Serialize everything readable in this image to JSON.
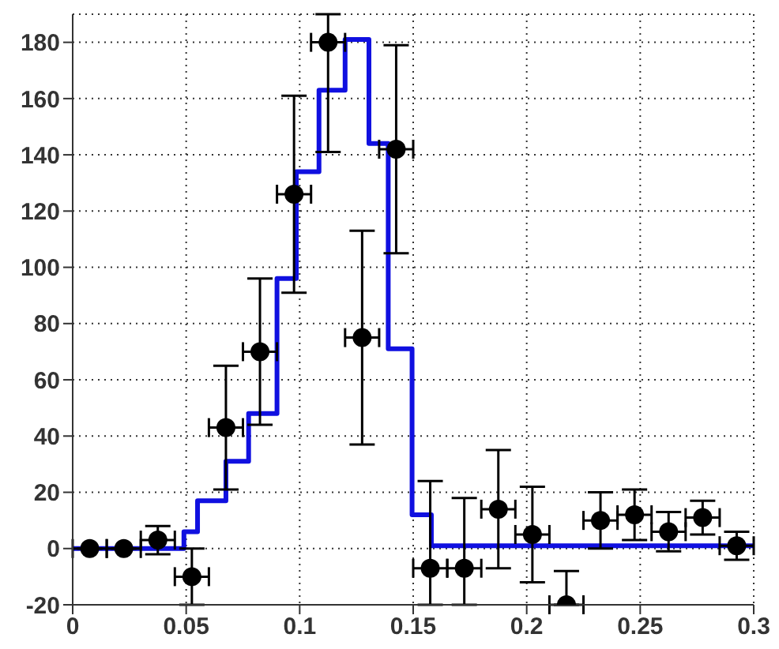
{
  "chart_data": {
    "type": "scatter",
    "xlim": [
      0,
      0.3
    ],
    "xticks": [
      0,
      0.05,
      0.1,
      0.15,
      0.2,
      0.25,
      0.3
    ],
    "ylim": [
      -20,
      190
    ],
    "yticks": [
      -20,
      0,
      20,
      40,
      60,
      80,
      100,
      120,
      140,
      160,
      180
    ],
    "grid": true,
    "series": [
      {
        "type": "step",
        "color": "#1010e0",
        "marker": "none",
        "x": [
          0,
          0.049,
          0.055,
          0.0675,
          0.0775,
          0.09,
          0.0985,
          0.1085,
          0.12,
          0.1305,
          0.139,
          0.1495,
          0.158,
          0.3
        ],
        "values": [
          0,
          6,
          17,
          31,
          48,
          96,
          134,
          163,
          181,
          144,
          71,
          12,
          1,
          1
        ]
      },
      {
        "color": "#000000",
        "marker": "circle",
        "x": [
          0.0075,
          0.0225,
          0.0375,
          0.0525,
          0.0675,
          0.0825,
          0.0975,
          0.1125,
          0.1275,
          0.1425,
          0.1575,
          0.1725,
          0.1875,
          0.2025,
          0.2175,
          0.2325,
          0.2475,
          0.2625,
          0.2775,
          0.2925
        ],
        "values": [
          0,
          0,
          3,
          -10,
          43,
          70,
          126,
          180,
          75,
          142,
          -7,
          -7,
          14,
          5,
          -20,
          10,
          12,
          6,
          11,
          1
        ],
        "errors": [
          null,
          null,
          5,
          10,
          22,
          26,
          35,
          [
            141,
            190
          ],
          38,
          37,
          [
            -20,
            24
          ],
          [
            -20,
            18
          ],
          21,
          17,
          [
            -20,
            -8
          ],
          10,
          9,
          7,
          6,
          5
        ],
        "xerrors": [
          0.0075,
          0.0075,
          0.0075,
          0.0075,
          0.0075,
          0.0075,
          0.0075,
          0.0075,
          0.0075,
          0.0075,
          0.0075,
          0.0075,
          0.0075,
          0.0075,
          0.0075,
          0.0075,
          0.0075,
          0.0075,
          0.0075,
          0.0075
        ]
      }
    ]
  }
}
